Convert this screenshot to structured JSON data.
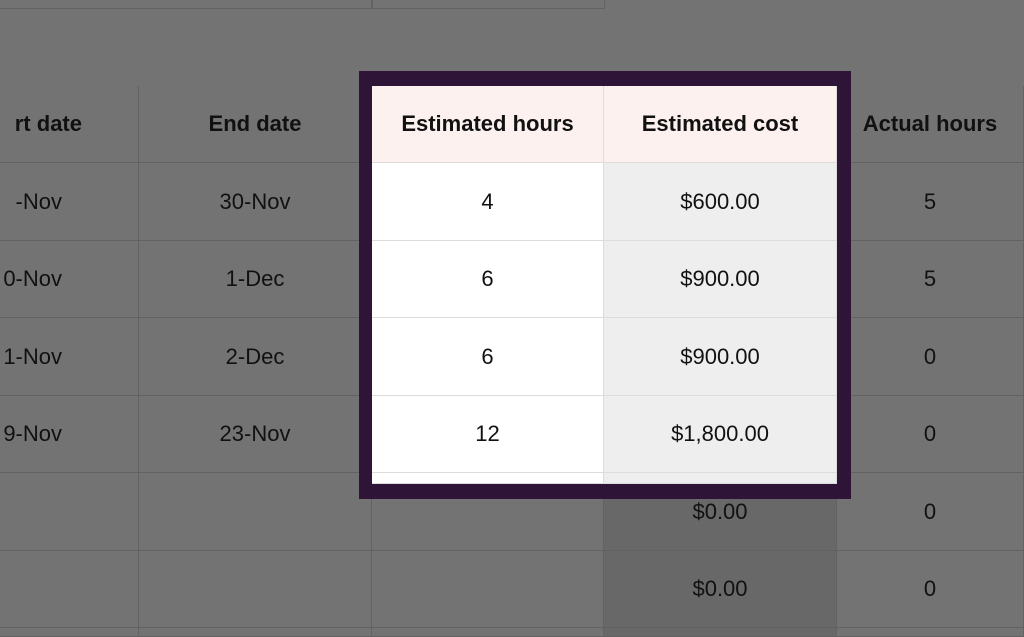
{
  "table": {
    "headers": [
      "rt date",
      "End date",
      "Estimated hours",
      "Estimated cost",
      "Actual hours"
    ],
    "rows": [
      [
        "-Nov",
        "30-Nov",
        "4",
        "$600.00",
        "5"
      ],
      [
        "0-Nov",
        "1-Dec",
        "6",
        "$900.00",
        "5"
      ],
      [
        "1-Nov",
        "2-Dec",
        "6",
        "$900.00",
        "0"
      ],
      [
        "9-Nov",
        "23-Nov",
        "12",
        "$1,800.00",
        "0"
      ],
      [
        "",
        "",
        "",
        "$0.00",
        "0"
      ],
      [
        "",
        "",
        "",
        "$0.00",
        "0"
      ]
    ]
  },
  "highlight": {
    "columns": [
      "Estimated hours",
      "Estimated cost"
    ],
    "border_color": "#2e1538"
  }
}
